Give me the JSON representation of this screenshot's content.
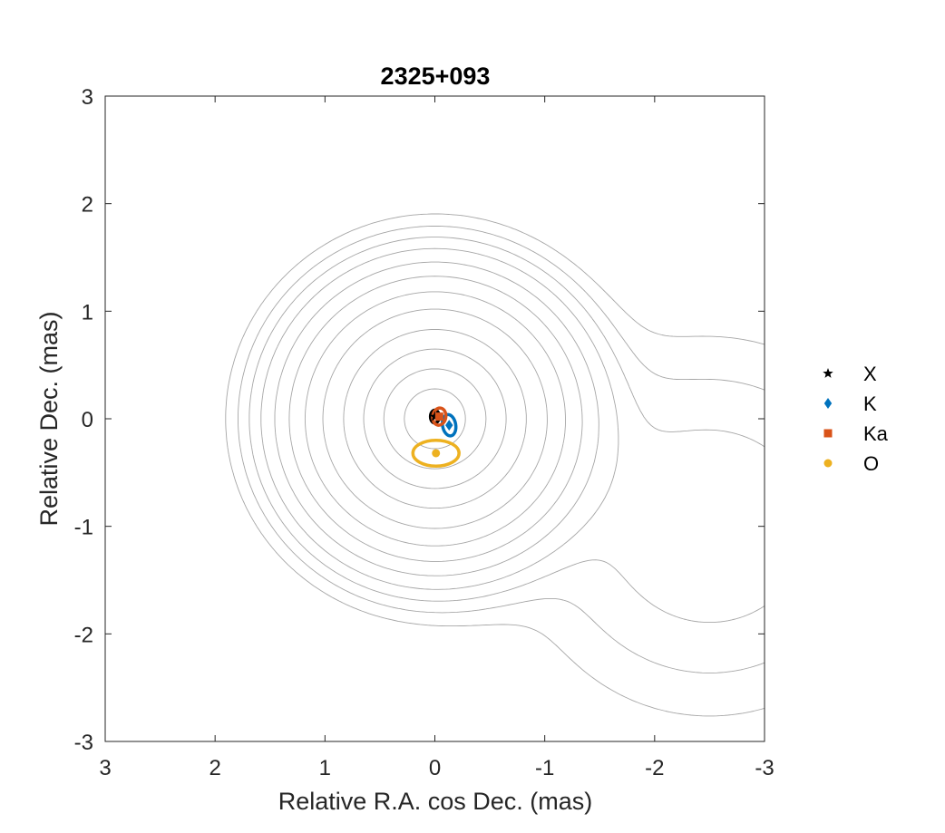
{
  "chart_data": {
    "type": "scatter",
    "title": "2325+093",
    "xlabel": "Relative R.A. cos Dec. (mas)",
    "ylabel": "Relative Dec. (mas)",
    "xlim": [
      3,
      -3
    ],
    "ylim": [
      -3,
      3
    ],
    "x_reversed": true,
    "xticks": [
      3,
      2,
      1,
      0,
      -1,
      -2,
      -3
    ],
    "xtick_labels": [
      "3",
      "2",
      "1",
      "0",
      "-1",
      "-2",
      "-3"
    ],
    "yticks": [
      3,
      2,
      1,
      0,
      -1,
      -2,
      -3
    ],
    "ytick_labels": [
      "3",
      "2",
      "1",
      "0",
      "-1",
      "-2",
      "-3"
    ],
    "legend_placement": "right",
    "grid": false,
    "background_contours": {
      "color": "#a6a6a6",
      "core_center": [
        0,
        0
      ],
      "jet_feature_center": [
        -2.5,
        -1.0
      ]
    },
    "series": [
      {
        "name": "X",
        "marker": "star",
        "color": "#000000",
        "x": 0.0,
        "y": 0.02,
        "error_ellipse": {
          "rx": 0.04,
          "ry": 0.06,
          "angle": 0
        }
      },
      {
        "name": "K",
        "marker": "diamond",
        "color": "#0072BD",
        "x": -0.13,
        "y": -0.06,
        "error_ellipse": {
          "rx": 0.06,
          "ry": 0.1,
          "angle": -10
        }
      },
      {
        "name": "Ka",
        "marker": "square",
        "color": "#D95319",
        "x": -0.04,
        "y": 0.02,
        "error_ellipse": {
          "rx": 0.06,
          "ry": 0.08,
          "angle": 10
        }
      },
      {
        "name": "O",
        "marker": "circle",
        "color": "#EDB120",
        "x": -0.01,
        "y": -0.32,
        "error_ellipse": {
          "rx": 0.21,
          "ry": 0.12,
          "angle": 0
        }
      }
    ]
  }
}
